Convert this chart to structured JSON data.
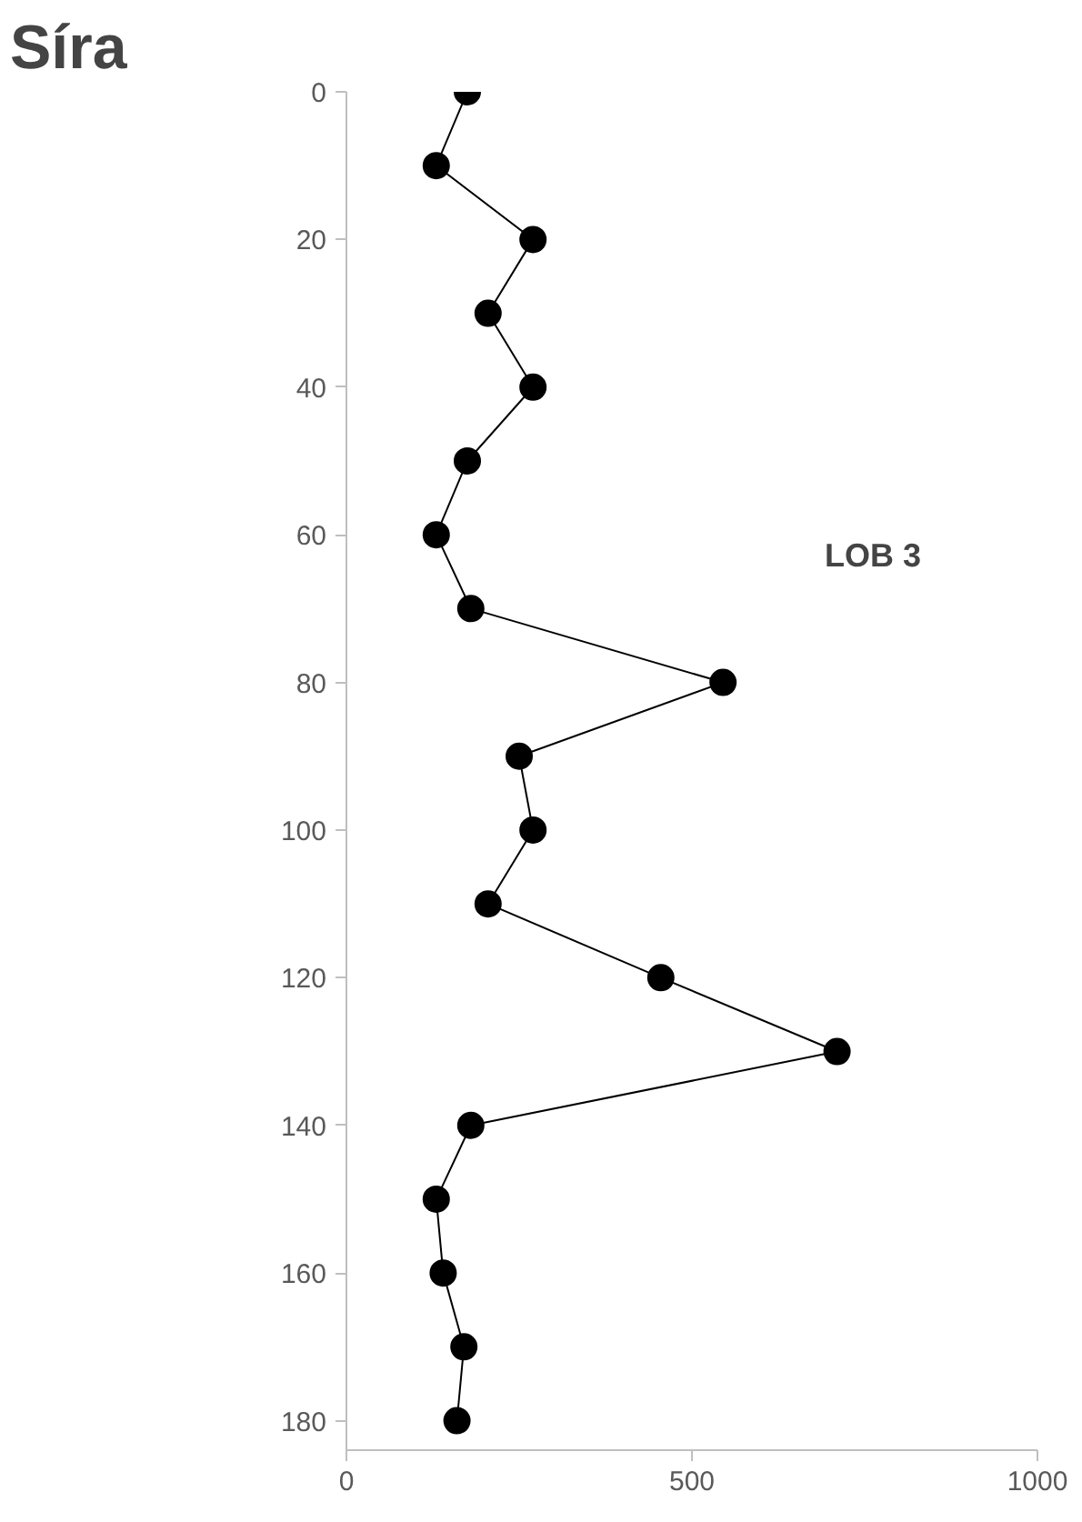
{
  "chart_data": {
    "type": "line",
    "title": "Síra",
    "annotations": [
      "LOB 3"
    ],
    "orientation": "horizontal",
    "marker": "circle",
    "line_style": "solid",
    "grid": false,
    "x": [
      0,
      10,
      20,
      30,
      40,
      50,
      60,
      70,
      80,
      90,
      100,
      110,
      120,
      130,
      140,
      150,
      160,
      170,
      180
    ],
    "series": [
      {
        "color": "#000000",
        "values": [
          175,
          130,
          270,
          205,
          270,
          175,
          130,
          180,
          545,
          250,
          270,
          205,
          455,
          710,
          180,
          130,
          140,
          170,
          160
        ]
      }
    ],
    "xlim": [
      0,
      1000
    ],
    "xticks": [
      0,
      500,
      1000
    ],
    "ylim": [
      184,
      0
    ],
    "yticks": [
      0,
      20,
      40,
      60,
      80,
      100,
      120,
      140,
      160,
      180
    ]
  }
}
